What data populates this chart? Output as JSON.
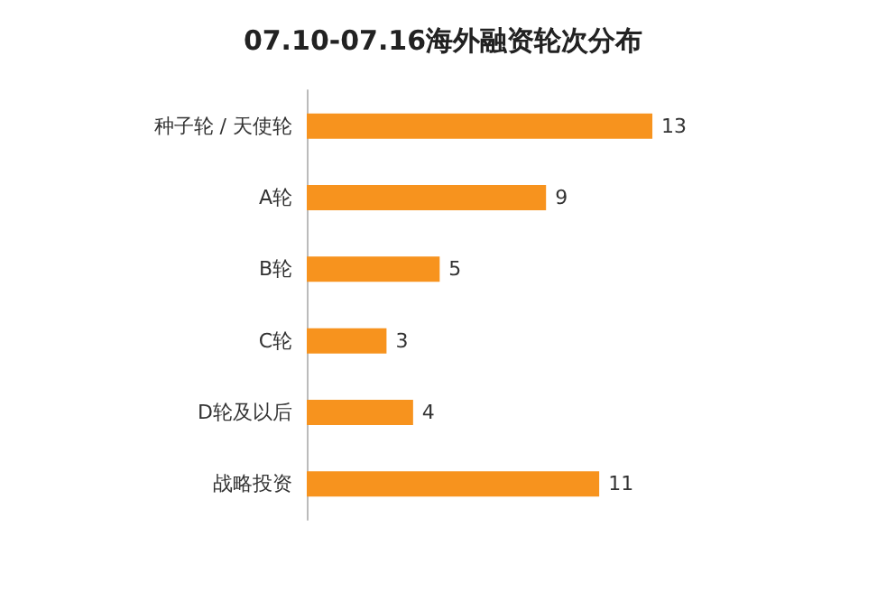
{
  "chart_data": {
    "type": "bar",
    "orientation": "horizontal",
    "title": "07.10-07.16海外融资轮次分布",
    "categories": [
      "种子轮 / 天使轮",
      "A轮",
      "B轮",
      "C轮",
      "D轮及以后",
      "战略投资"
    ],
    "values": [
      13,
      9,
      5,
      3,
      4,
      11
    ],
    "color": "#f7931e",
    "data_labels": true,
    "tick_labels": "y"
  }
}
